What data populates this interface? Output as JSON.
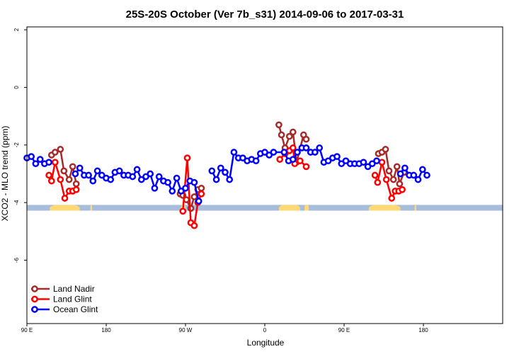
{
  "chart_data": {
    "type": "line",
    "title": "25S-20S October (Ver 7b_s31)   2014-09-06 to 2017-03-31",
    "xlabel": "Longitude",
    "ylabel": "XCO2 - MLO trend (ppm)",
    "xlim": [
      -90,
      180
    ],
    "ylim": [
      -8.2,
      2.1
    ],
    "x_ticks": [
      {
        "value": -90,
        "label": "90 E"
      },
      {
        "value": -45,
        "label": "180"
      },
      {
        "value": 0,
        "label": "90 W"
      },
      {
        "value": 45,
        "label": "0"
      },
      {
        "value": 90,
        "label": "90 E"
      },
      {
        "value": 135,
        "label": "180"
      }
    ],
    "y_ticks": [
      {
        "value": 2,
        "label": "2"
      },
      {
        "value": 0,
        "label": "0"
      },
      {
        "value": -2,
        "label": "-2"
      },
      {
        "value": -4,
        "label": "-4"
      },
      {
        "value": -6,
        "label": "-6"
      }
    ],
    "legend_position": "bottom-left",
    "land_mask": {
      "ocean_color": "#a6bddb",
      "land_color": "#fed976",
      "y_range": [
        -4.28,
        -4.08
      ],
      "land_bands": [
        [
          -77,
          -60
        ],
        [
          -54,
          -53
        ],
        [
          -2.5,
          0
        ],
        [
          53,
          65
        ],
        [
          67.5,
          70
        ],
        [
          104,
          122
        ],
        [
          130,
          131
        ]
      ]
    },
    "series": [
      {
        "name": "Land Nadir",
        "color": "#a52a2a",
        "points": [
          [
            -76,
            -2.35
          ],
          [
            -74,
            -2.25
          ],
          [
            -71,
            -2.15
          ],
          [
            -69,
            -2.9
          ],
          [
            -66,
            -3.2
          ],
          [
            -64,
            -2.75
          ],
          [
            -62,
            -3.35
          ],
          [
            -3,
            -3.7
          ],
          [
            -1.5,
            -3.75
          ],
          [
            0.5,
            -3.9
          ],
          [
            3,
            -4.2
          ],
          [
            5,
            -3.8
          ],
          [
            7,
            -3.55
          ],
          [
            9,
            -3.5
          ],
          [
            53,
            -1.3
          ],
          [
            54.5,
            -1.65
          ],
          [
            56.5,
            -2.1
          ],
          [
            59,
            -1.7
          ],
          [
            61,
            -1.55
          ],
          [
            63,
            -2.6
          ],
          [
            67,
            -1.65
          ],
          [
            68.5,
            -1.8
          ],
          [
            109.5,
            -2.3
          ],
          [
            111.5,
            -2.25
          ],
          [
            113.5,
            -2.15
          ],
          [
            115.5,
            -2.9
          ],
          [
            118,
            -3.2
          ],
          [
            120,
            -2.75
          ],
          [
            121.5,
            -3.35
          ],
          [
            124,
            -2.95
          ]
        ]
      },
      {
        "name": "Land Glint",
        "color": "#ff0000",
        "points": [
          [
            -77.5,
            -3.05
          ],
          [
            -76,
            -3.25
          ],
          [
            -74,
            -2.6
          ],
          [
            -71,
            -3.2
          ],
          [
            -68.5,
            -3.85
          ],
          [
            -66,
            -3.6
          ],
          [
            -64,
            -3.6
          ],
          [
            -62,
            -3.55
          ],
          [
            -1.5,
            -4.3
          ],
          [
            1,
            -2.45
          ],
          [
            3,
            -4.7
          ],
          [
            5,
            -4.8
          ],
          [
            7,
            -4.0
          ],
          [
            9,
            -3.7
          ],
          [
            53.5,
            -2.5
          ],
          [
            56.5,
            -2.3
          ],
          [
            59,
            -2.2
          ],
          [
            61,
            -2.1
          ],
          [
            62,
            -2.65
          ],
          [
            65,
            -2.55
          ],
          [
            68.5,
            -2.75
          ],
          [
            107.5,
            -3.05
          ],
          [
            109,
            -3.3
          ],
          [
            111.5,
            -2.6
          ],
          [
            114,
            -3.2
          ],
          [
            117,
            -3.85
          ],
          [
            119,
            -3.6
          ],
          [
            121,
            -3.6
          ],
          [
            123,
            -3.55
          ]
        ]
      },
      {
        "name": "Ocean Glint",
        "color": "#0000ff",
        "points": [
          [
            -90,
            -2.45
          ],
          [
            -87.5,
            -2.4
          ],
          [
            -85,
            -2.65
          ],
          [
            -82.5,
            -2.5
          ],
          [
            -80,
            -2.65
          ],
          [
            -77.5,
            -2.6
          ],
          [
            -62.5,
            -3.0
          ],
          [
            -60,
            -2.8
          ],
          [
            -57.5,
            -3.05
          ],
          [
            -55,
            -3.05
          ],
          [
            -52.5,
            -3.25
          ],
          [
            -50,
            -2.9
          ],
          [
            -47.5,
            -3.05
          ],
          [
            -45,
            -3.15
          ],
          [
            -42.5,
            -3.2
          ],
          [
            -40,
            -2.95
          ],
          [
            -37.5,
            -2.9
          ],
          [
            -35,
            -3.05
          ],
          [
            -32.5,
            -3.05
          ],
          [
            -30,
            -3.1
          ],
          [
            -27.5,
            -2.85
          ],
          [
            -25,
            -3.2
          ],
          [
            -22.5,
            -3.1
          ],
          [
            -20,
            -3.0
          ],
          [
            -17.5,
            -3.5
          ],
          [
            -15,
            -3.1
          ],
          [
            -12.5,
            -3.25
          ],
          [
            -10,
            -3.3
          ],
          [
            -7.5,
            -3.6
          ],
          [
            -5,
            -3.15
          ],
          [
            -2.5,
            -3.6
          ],
          [
            0,
            -3.5
          ],
          [
            2.5,
            -3.25
          ],
          [
            5,
            -3.3
          ],
          [
            7.5,
            -3.95
          ],
          [
            15,
            -2.9
          ],
          [
            17.5,
            -3.2
          ],
          [
            20,
            -2.8
          ],
          [
            22.5,
            -2.95
          ],
          [
            25,
            -3.2
          ],
          [
            27.5,
            -2.25
          ],
          [
            30,
            -2.45
          ],
          [
            32.5,
            -2.45
          ],
          [
            35,
            -2.55
          ],
          [
            37.5,
            -2.5
          ],
          [
            40,
            -2.55
          ],
          [
            42.5,
            -2.3
          ],
          [
            45,
            -2.25
          ],
          [
            47.5,
            -2.35
          ],
          [
            50,
            -2.25
          ],
          [
            56,
            -2.25
          ],
          [
            58.5,
            -2.55
          ],
          [
            61,
            -2.5
          ],
          [
            63.5,
            -2.25
          ],
          [
            66,
            -2.1
          ],
          [
            68.5,
            -2.1
          ],
          [
            71,
            -2.25
          ],
          [
            73.5,
            -2.25
          ],
          [
            76,
            -2.1
          ],
          [
            78.5,
            -2.6
          ],
          [
            81,
            -2.55
          ],
          [
            83.5,
            -2.45
          ],
          [
            86,
            -2.4
          ],
          [
            88.5,
            -2.65
          ],
          [
            91,
            -2.55
          ],
          [
            93.5,
            -2.65
          ],
          [
            96,
            -2.65
          ],
          [
            98.5,
            -2.65
          ],
          [
            101,
            -2.6
          ],
          [
            103.5,
            -2.75
          ],
          [
            106,
            -2.65
          ],
          [
            108.5,
            -2.55
          ],
          [
            122,
            -3.0
          ],
          [
            124.5,
            -2.8
          ],
          [
            127,
            -3.05
          ],
          [
            129.5,
            -3.05
          ],
          [
            132,
            -3.2
          ],
          [
            134.5,
            -2.85
          ],
          [
            137,
            -3.05
          ]
        ]
      }
    ]
  }
}
